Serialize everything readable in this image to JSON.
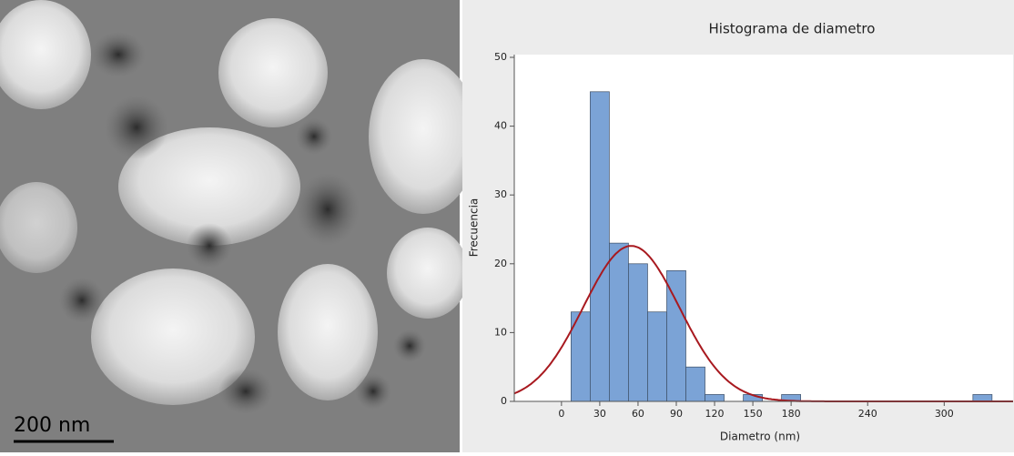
{
  "image": {
    "scale_bar_label": "200 nm"
  },
  "chart_data": {
    "type": "histogram",
    "title": "Histograma de diametro",
    "x_label": "Diametro (nm)",
    "y_label": "Frecuencia",
    "bins": [
      7.5,
      22.5,
      37.5,
      52.5,
      67.5,
      82.5,
      97.5,
      112.5,
      127.5,
      142.5,
      157.5,
      172.5,
      187.5,
      202.5,
      217.5,
      232.5,
      247.5,
      262.5,
      277.5,
      292.5,
      307.5,
      322.5,
      337.5
    ],
    "values": [
      13,
      45,
      23,
      20,
      13,
      19,
      5,
      1,
      0,
      1,
      0,
      1,
      0,
      0,
      0,
      0,
      0,
      0,
      0,
      0,
      0,
      1
    ],
    "color": "#7ba3d6",
    "fit": {
      "mean": 54.7,
      "sd": 37.6,
      "color": "#a8191f"
    },
    "xlim": [
      -37,
      354
    ],
    "ylim": [
      0,
      50
    ],
    "xticks": [
      0,
      30,
      60,
      90,
      120,
      150,
      180,
      240,
      300
    ],
    "yticks": [
      0,
      10,
      20,
      30,
      40,
      50
    ],
    "grid": false
  }
}
